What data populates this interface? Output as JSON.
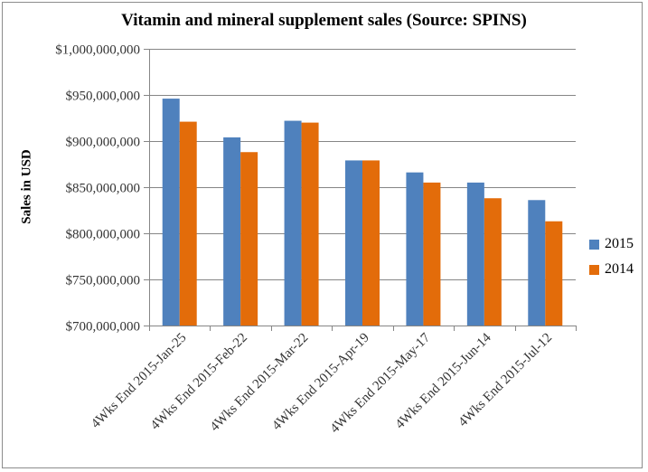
{
  "chart_data": {
    "type": "bar",
    "title": "Vitamin and mineral supplement sales (Source: SPINS)",
    "xlabel": "",
    "ylabel": "Sales in USD",
    "ylim": [
      700000000,
      1000000000
    ],
    "yticks": [
      700000000,
      750000000,
      800000000,
      850000000,
      900000000,
      950000000,
      1000000000
    ],
    "ytick_labels": [
      "$700,000,000",
      "$750,000,000",
      "$800,000,000",
      "$850,000,000",
      "$900,000,000",
      "$950,000,000",
      "$1,000,000,000"
    ],
    "grid": true,
    "legend_position": "right",
    "categories": [
      "4Wks End 2015-Jan-25",
      "4Wks End 2015-Feb-22",
      "4Wks End 2015-Mar-22",
      "4Wks End 2015-Apr-19",
      "4Wks End 2015-May-17",
      "4Wks End 2015-Jun-14",
      "4Wks End 2015-Jul-12"
    ],
    "series": [
      {
        "name": "2015",
        "color": "#4f81bd",
        "values": [
          946000000,
          904000000,
          922000000,
          879000000,
          866000000,
          855000000,
          836000000
        ]
      },
      {
        "name": "2014",
        "color": "#e36c0a",
        "values": [
          921000000,
          888000000,
          920000000,
          879000000,
          855000000,
          838000000,
          813000000
        ]
      }
    ]
  }
}
